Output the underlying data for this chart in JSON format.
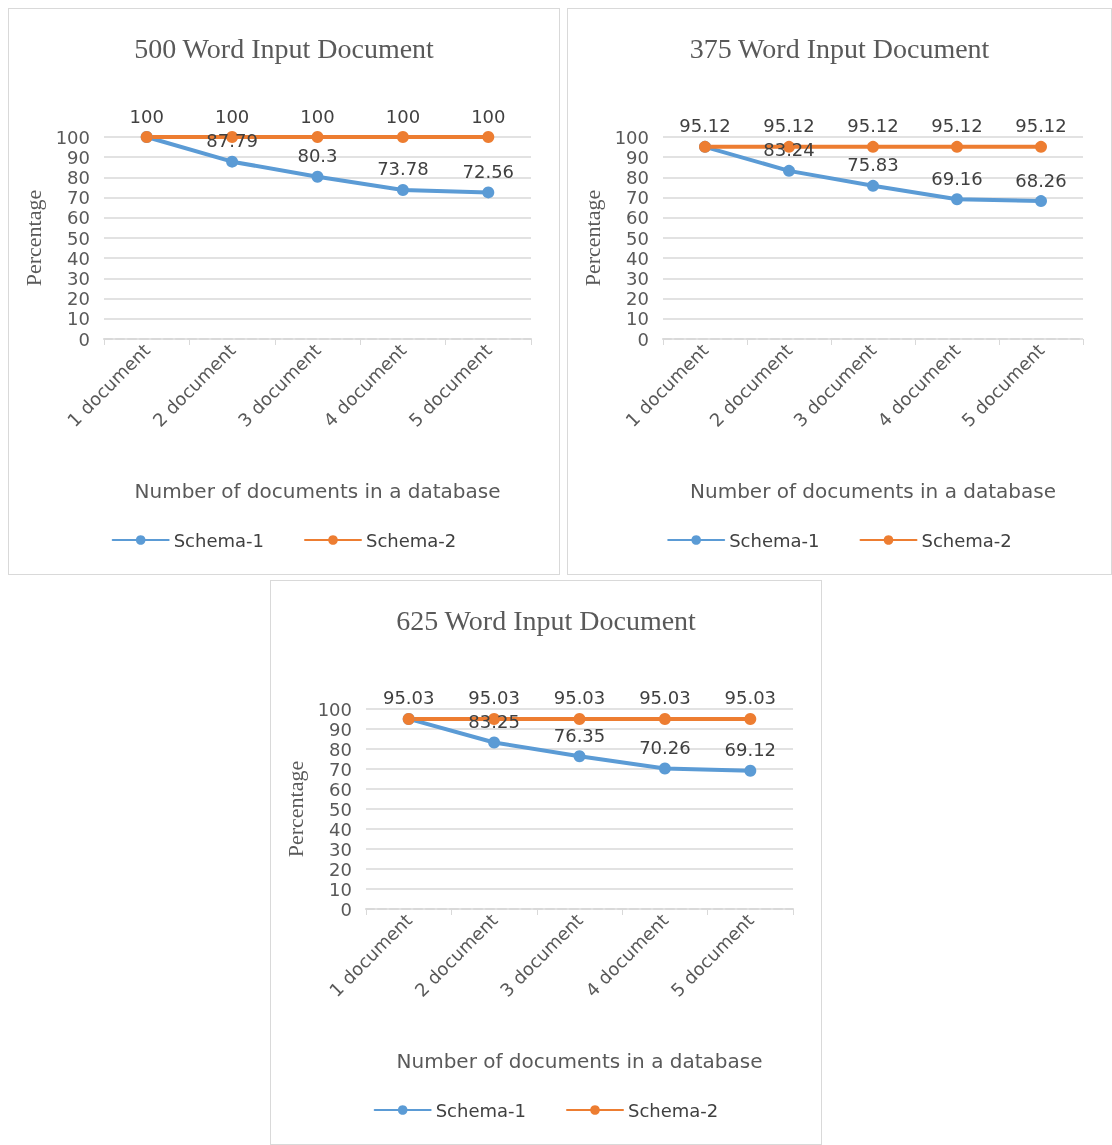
{
  "chart_data": [
    {
      "type": "line",
      "title": "500 Word Input Document",
      "xlabel": "Number of documents in a database",
      "ylabel": "Percentage",
      "categories": [
        "1 document",
        "2 document",
        "3 document",
        "4 document",
        "5 document"
      ],
      "series": [
        {
          "name": "Schema-1",
          "color": "#5b9bd5",
          "values": [
            100,
            87.79,
            80.3,
            73.78,
            72.56
          ],
          "value_labels": [
            null,
            "87.79",
            "80.3",
            "73.78",
            "72.56"
          ]
        },
        {
          "name": "Schema-2",
          "color": "#ed7d31",
          "values": [
            100,
            100,
            100,
            100,
            100
          ],
          "value_labels": [
            "100",
            "100",
            "100",
            "100",
            "100"
          ]
        }
      ],
      "ylim": [
        0,
        100
      ],
      "yticks": [
        0,
        10,
        20,
        30,
        40,
        50,
        60,
        70,
        80,
        90,
        100
      ],
      "grid": "y",
      "legend": "bottom",
      "marker": "circle"
    },
    {
      "type": "line",
      "title": "375 Word Input Document",
      "xlabel": "Number of documents in a database",
      "ylabel": "Percentage",
      "categories": [
        "1 document",
        "2 document",
        "3 document",
        "4 document",
        "5 document"
      ],
      "series": [
        {
          "name": "Schema-1",
          "color": "#5b9bd5",
          "values": [
            95.12,
            83.24,
            75.83,
            69.16,
            68.26
          ],
          "value_labels": [
            null,
            "83.24",
            "75.83",
            "69.16",
            "68.26"
          ]
        },
        {
          "name": "Schema-2",
          "color": "#ed7d31",
          "values": [
            95.12,
            95.12,
            95.12,
            95.12,
            95.12
          ],
          "value_labels": [
            "95.12",
            "95.12",
            "95.12",
            "95.12",
            "95.12"
          ]
        }
      ],
      "ylim": [
        0,
        100
      ],
      "yticks": [
        0,
        10,
        20,
        30,
        40,
        50,
        60,
        70,
        80,
        90,
        100
      ],
      "grid": "y",
      "legend": "bottom",
      "marker": "circle"
    },
    {
      "type": "line",
      "title": "625 Word Input Document",
      "xlabel": "Number of documents in a database",
      "ylabel": "Percentage",
      "categories": [
        "1 document",
        "2 document",
        "3 document",
        "4 document",
        "5 document"
      ],
      "series": [
        {
          "name": "Schema-1",
          "color": "#5b9bd5",
          "values": [
            95.03,
            83.25,
            76.35,
            70.26,
            69.12
          ],
          "value_labels": [
            null,
            "83.25",
            "76.35",
            "70.26",
            "69.12"
          ]
        },
        {
          "name": "Schema-2",
          "color": "#ed7d31",
          "values": [
            95.03,
            95.03,
            95.03,
            95.03,
            95.03
          ],
          "value_labels": [
            "95.03",
            "95.03",
            "95.03",
            "95.03",
            "95.03"
          ]
        }
      ],
      "ylim": [
        0,
        100
      ],
      "yticks": [
        0,
        10,
        20,
        30,
        40,
        50,
        60,
        70,
        80,
        90,
        100
      ],
      "grid": "y",
      "legend": "bottom",
      "marker": "circle"
    }
  ]
}
